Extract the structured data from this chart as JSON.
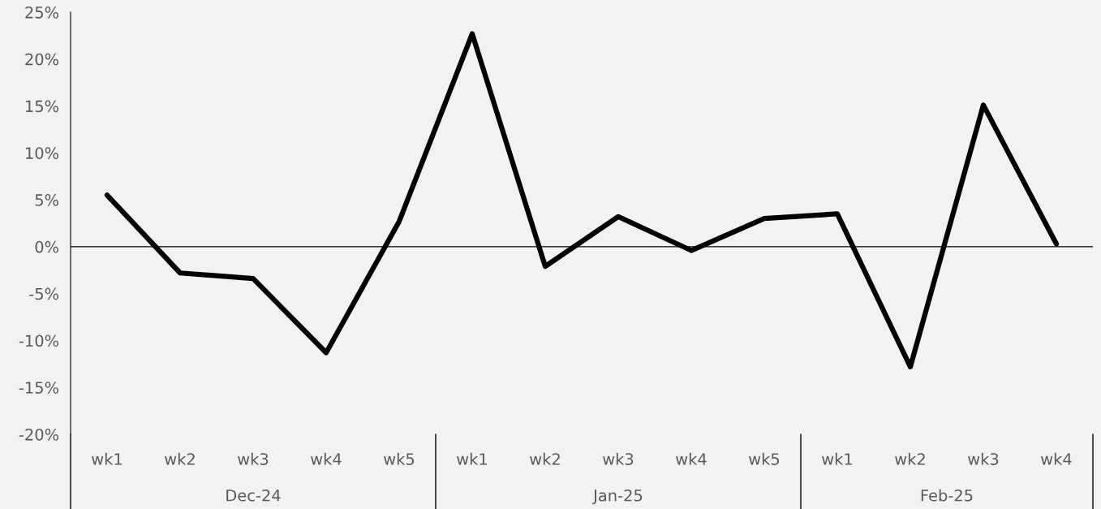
{
  "chart_data": {
    "type": "line",
    "categories": [
      "wk1",
      "wk2",
      "wk3",
      "wk4",
      "wk5",
      "wk1",
      "wk2",
      "wk3",
      "wk4",
      "wk5",
      "wk1",
      "wk2",
      "wk3",
      "wk4"
    ],
    "series": [
      {
        "color": "#000000",
        "values": [
          5.5,
          -2.8,
          -3.4,
          -11.3,
          2.7,
          22.7,
          -2.1,
          3.2,
          -0.4,
          3.0,
          3.5,
          -12.8,
          15.1,
          0.3
        ]
      }
    ],
    "annotations": [
      "Dec-24",
      "Jan-25",
      "Feb-25"
    ],
    "ylim": [
      -20,
      25
    ],
    "yticks": [
      {
        "value": -20,
        "label": "-20%"
      },
      {
        "value": -15,
        "label": "-15%"
      },
      {
        "value": -10,
        "label": "-10%"
      },
      {
        "value": -5,
        "label": "-5%"
      },
      {
        "value": 0,
        "label": "0%"
      },
      {
        "value": 5,
        "label": "5%"
      },
      {
        "value": 10,
        "label": "10%"
      },
      {
        "value": 15,
        "label": "15%"
      },
      {
        "value": 20,
        "label": "20%"
      },
      {
        "value": 25,
        "label": "25%"
      }
    ],
    "ref_lines": [
      {
        "axis": "y",
        "value": 0,
        "color": "#000000",
        "line_style": "solid"
      }
    ],
    "legend": false,
    "marker": "none",
    "line_style": "solid"
  }
}
